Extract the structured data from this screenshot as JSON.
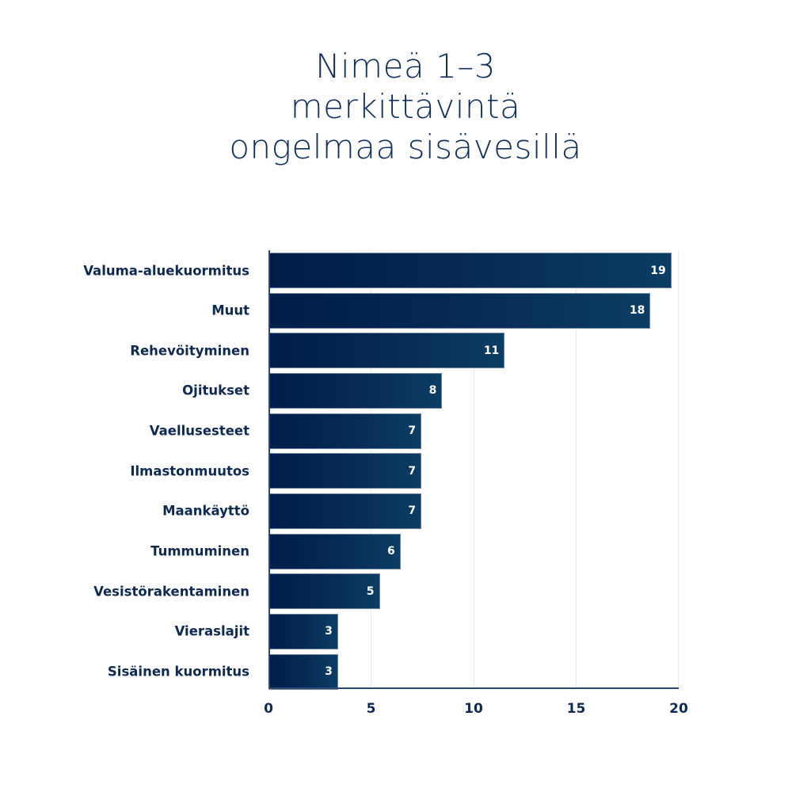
{
  "title_lines": [
    "Nimeä 1–3",
    "merkittävintä",
    "ongelmaa sisävesillä"
  ],
  "colors": {
    "bar_start": "#001d4a",
    "bar_end": "#0b3d64",
    "text": "#0f2a52",
    "grid": "#e9ecef"
  },
  "chart_data": {
    "type": "bar",
    "orientation": "horizontal",
    "title": "Nimeä 1–3 merkittävintä ongelmaa sisävesillä",
    "categories": [
      "Valuma-aluekuormitus",
      "Muut",
      "Rehevöityminen",
      "Ojitukset",
      "Vaellusesteet",
      "Ilmastonmuutos",
      "Maankäyttö",
      "Tummuminen",
      "Vesistörakentaminen",
      "Vieraslajit",
      "Sisäinen kuormitus"
    ],
    "values": [
      19,
      18,
      11,
      8,
      7,
      7,
      7,
      6,
      5,
      3,
      3
    ],
    "xlabel": "",
    "ylabel": "",
    "xlim": [
      0,
      20
    ],
    "xticks": [
      "0",
      "5",
      "10",
      "15",
      "20"
    ],
    "grid": true,
    "data_labels": true,
    "legend": null
  }
}
